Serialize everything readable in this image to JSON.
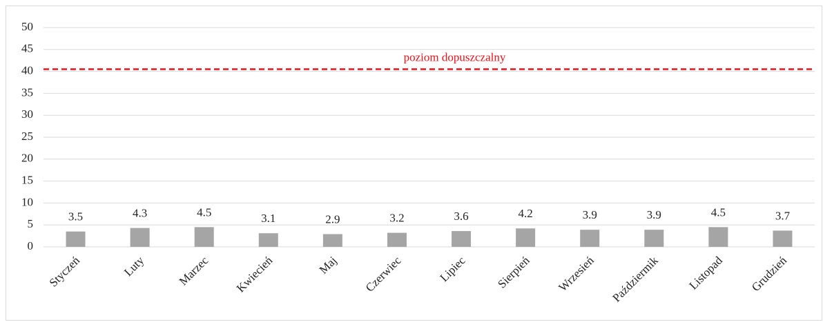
{
  "chart_data": {
    "type": "bar",
    "categories": [
      "Styczeń",
      "Luty",
      "Marzec",
      "Kwiecień",
      "Maj",
      "Czerwiec",
      "Lipiec",
      "Sierpień",
      "Wrzesień",
      "Paździermik",
      "Listopad",
      "Grudzień"
    ],
    "values": [
      3.5,
      4.3,
      4.5,
      3.1,
      2.9,
      3.2,
      3.6,
      4.2,
      3.9,
      3.9,
      4.5,
      3.7
    ],
    "color": "#a5a5a5",
    "ylim": [
      0,
      50
    ],
    "yticks": [
      0,
      5,
      10,
      15,
      20,
      25,
      30,
      35,
      40,
      45,
      50
    ],
    "grid": true,
    "reference_line": {
      "value": 40.5,
      "label": "poziom dopuszczalny",
      "color": "#e8141b"
    }
  }
}
